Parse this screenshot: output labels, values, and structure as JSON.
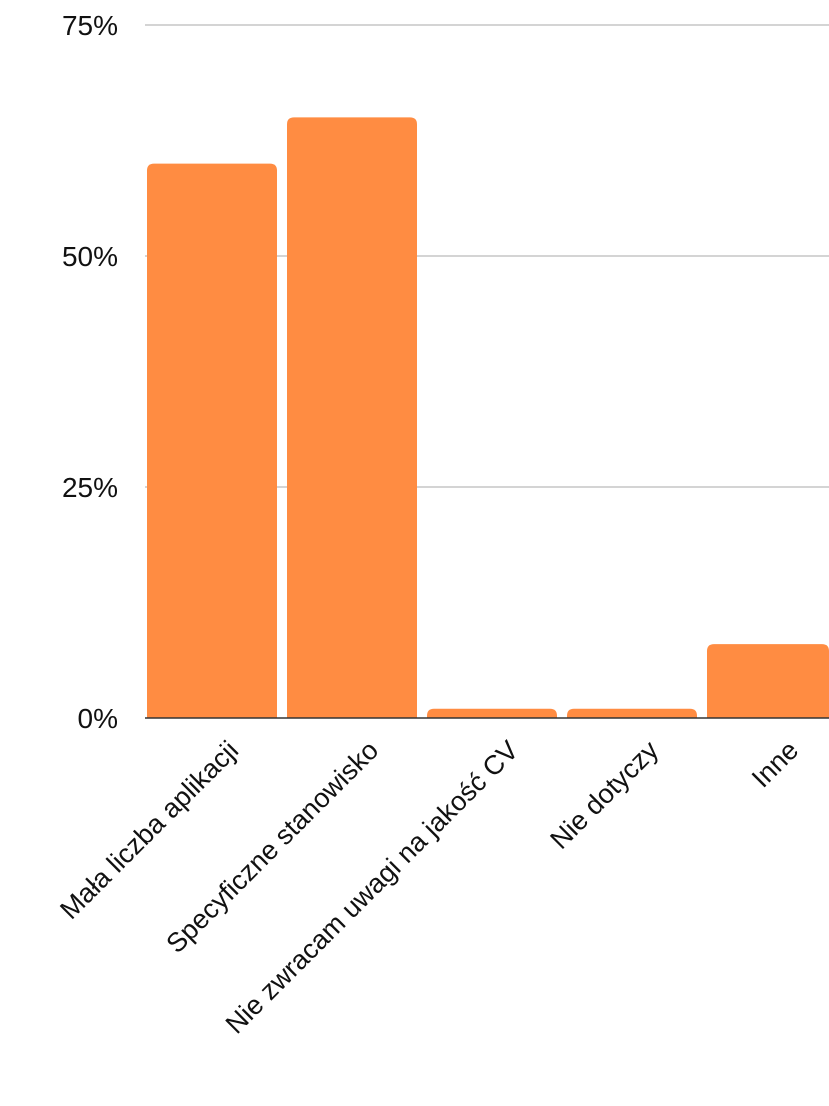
{
  "chart_data": {
    "type": "bar",
    "categories": [
      "Mała liczba aplikacji",
      "Specyficzne stanowisko",
      "Nie zwracam uwagi na jakość CV",
      "Nie dotyczy",
      "Inne"
    ],
    "values": [
      60,
      65,
      1,
      1,
      8
    ],
    "value_unit": "%",
    "ylim": [
      0,
      75
    ],
    "yticks": [
      0,
      25,
      50,
      75
    ],
    "ytick_labels": [
      "0%",
      "25%",
      "50%",
      "75%"
    ],
    "grid": true,
    "legend": "none",
    "bar_color": "#FF8C42",
    "grid_color": "#BBBBBB",
    "baseline_color": "#333333"
  }
}
